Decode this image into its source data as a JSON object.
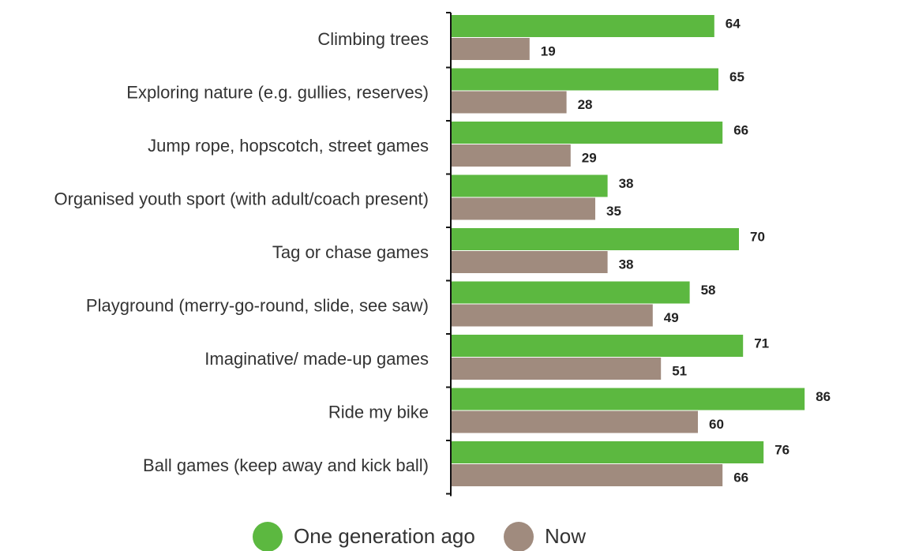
{
  "chart_data": {
    "type": "bar",
    "orientation": "horizontal",
    "categories": [
      "Climbing trees",
      "Exploring nature (e.g. gullies, reserves)",
      "Jump rope, hopscotch, street games",
      "Organised youth sport (with adult/coach present)",
      "Tag or chase games",
      "Playground (merry-go-round, slide, see saw)",
      "Imaginative/ made-up games",
      "Ride my bike",
      "Ball games (keep away and kick ball)"
    ],
    "series": [
      {
        "name": "One generation ago",
        "color": "#5cb840",
        "values": [
          64,
          65,
          66,
          38,
          70,
          58,
          71,
          86,
          76
        ]
      },
      {
        "name": "Now",
        "color": "#a08b7e",
        "values": [
          19,
          28,
          29,
          35,
          38,
          49,
          51,
          60,
          66
        ]
      }
    ],
    "xlim": [
      0,
      100
    ],
    "grid": false,
    "legend_position": "bottom-center",
    "data_labels": true
  }
}
